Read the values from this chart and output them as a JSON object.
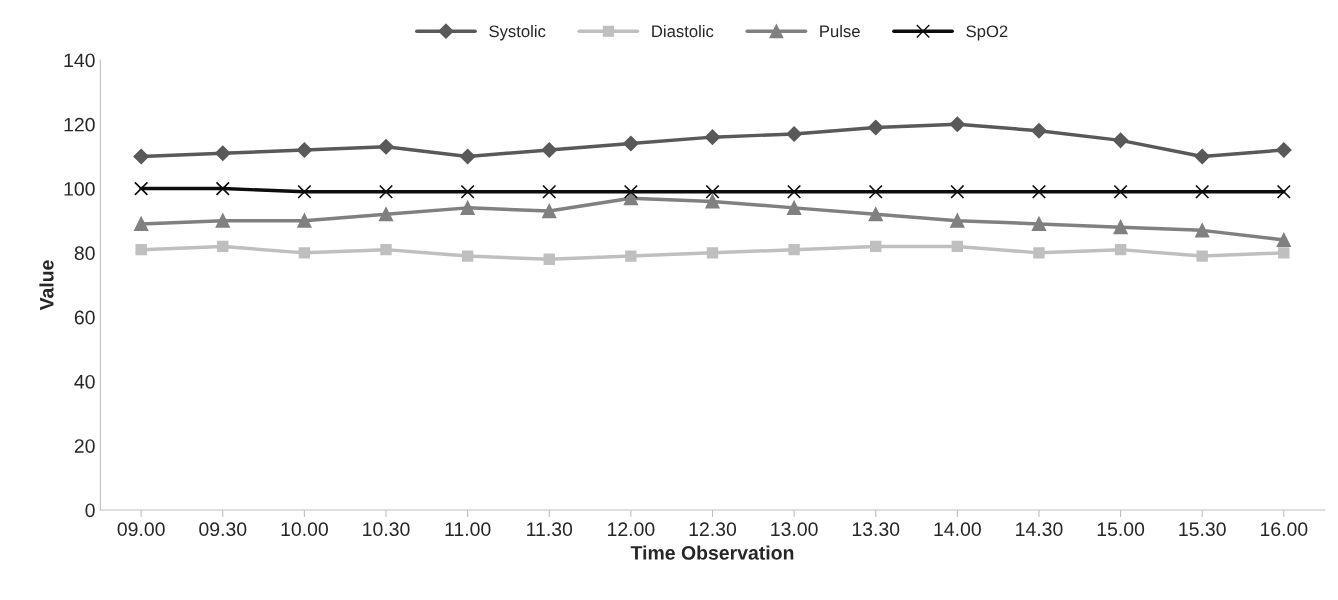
{
  "chart_data": {
    "type": "line",
    "xlabel": "Time Observation",
    "ylabel": "Value",
    "categories": [
      "09.00",
      "09.30",
      "10.00",
      "10.30",
      "11.00",
      "11.30",
      "12.00",
      "12.30",
      "13.00",
      "13.30",
      "14.00",
      "14.30",
      "15.00",
      "15.30",
      "16.00"
    ],
    "series": [
      {
        "name": "Systolic",
        "color": "#595959",
        "marker": "diamond",
        "values": [
          110,
          111,
          112,
          113,
          110,
          112,
          114,
          116,
          117,
          119,
          120,
          118,
          115,
          110,
          112
        ]
      },
      {
        "name": "Diastolic",
        "color": "#bfbfbf",
        "marker": "square",
        "values": [
          81,
          82,
          80,
          81,
          79,
          78,
          79,
          80,
          81,
          82,
          82,
          80,
          81,
          79,
          80
        ]
      },
      {
        "name": "Pulse",
        "color": "#808080",
        "marker": "triangle",
        "values": [
          89,
          90,
          90,
          92,
          94,
          93,
          97,
          96,
          94,
          92,
          90,
          89,
          88,
          87,
          84
        ]
      },
      {
        "name": "SpO2",
        "color": "#0d0d0d",
        "marker": "cross",
        "values": [
          100,
          100,
          99,
          99,
          99,
          99,
          99,
          99,
          99,
          99,
          99,
          99,
          99,
          99,
          99
        ]
      }
    ],
    "ylim": [
      0,
      140
    ],
    "yticks": [
      0,
      20,
      40,
      60,
      80,
      100,
      120,
      140
    ],
    "grid": false,
    "legend": "top",
    "line_style": "solid"
  }
}
